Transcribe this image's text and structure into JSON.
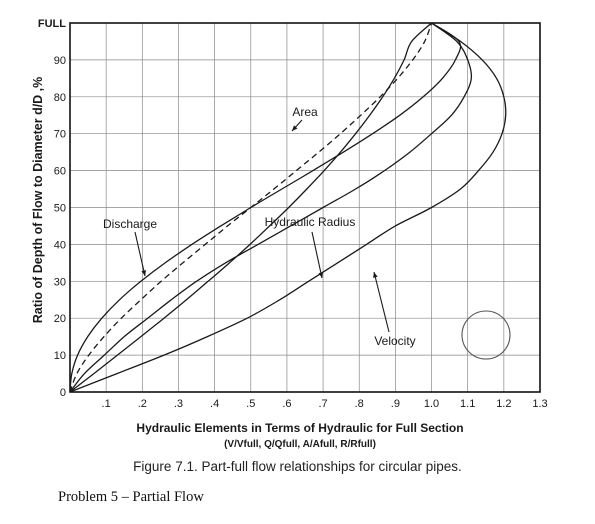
{
  "chart_data": {
    "type": "line",
    "ylabel": "Ratio of Depth of Flow to Diameter d/D ,%",
    "xlabel": "Hydraulic Elements in Terms of Hydraulic for Full Section",
    "xlabel_sub": "(V/Vfull, Q/Qfull, A/Afull, R/Rfull)",
    "xlim": [
      0,
      1.3
    ],
    "ylim": [
      0,
      100
    ],
    "x_ticks": [
      {
        "v": 0.1,
        "label": ".1"
      },
      {
        "v": 0.2,
        "label": ".2"
      },
      {
        "v": 0.3,
        "label": ".3"
      },
      {
        "v": 0.4,
        "label": ".4"
      },
      {
        "v": 0.5,
        "label": ".5"
      },
      {
        "v": 0.6,
        "label": ".6"
      },
      {
        "v": 0.7,
        "label": ".7"
      },
      {
        "v": 0.8,
        "label": ".8"
      },
      {
        "v": 0.9,
        "label": ".9"
      },
      {
        "v": 1.0,
        "label": "1.0"
      },
      {
        "v": 1.1,
        "label": "1.1"
      },
      {
        "v": 1.2,
        "label": "1.2"
      },
      {
        "v": 1.3,
        "label": "1.3"
      }
    ],
    "y_ticks": [
      {
        "v": 0,
        "label": "0"
      },
      {
        "v": 10,
        "label": "10"
      },
      {
        "v": 20,
        "label": "20"
      },
      {
        "v": 30,
        "label": "30"
      },
      {
        "v": 40,
        "label": "40"
      },
      {
        "v": 50,
        "label": "50"
      },
      {
        "v": 60,
        "label": "60"
      },
      {
        "v": 70,
        "label": "70"
      },
      {
        "v": 80,
        "label": "80"
      },
      {
        "v": 90,
        "label": "90"
      },
      {
        "v": 100,
        "label": "FULL"
      }
    ],
    "grid": true,
    "series": [
      {
        "name": "Area",
        "style": "dashed",
        "points": [
          [
            0,
            0
          ],
          [
            0.019,
            5
          ],
          [
            0.052,
            10
          ],
          [
            0.094,
            15
          ],
          [
            0.142,
            20
          ],
          [
            0.196,
            25
          ],
          [
            0.252,
            30
          ],
          [
            0.312,
            35
          ],
          [
            0.374,
            40
          ],
          [
            0.436,
            45
          ],
          [
            0.5,
            50
          ],
          [
            0.564,
            55
          ],
          [
            0.626,
            60
          ],
          [
            0.688,
            65
          ],
          [
            0.748,
            70
          ],
          [
            0.804,
            75
          ],
          [
            0.858,
            80
          ],
          [
            0.906,
            85
          ],
          [
            0.948,
            90
          ],
          [
            0.981,
            95
          ],
          [
            1.0,
            100
          ]
        ]
      },
      {
        "name": "Discharge",
        "style": "solid",
        "points": [
          [
            0,
            0
          ],
          [
            0.005,
            5
          ],
          [
            0.021,
            10
          ],
          [
            0.049,
            15
          ],
          [
            0.088,
            20
          ],
          [
            0.137,
            25
          ],
          [
            0.196,
            30
          ],
          [
            0.263,
            35
          ],
          [
            0.337,
            40
          ],
          [
            0.417,
            45
          ],
          [
            0.5,
            50
          ],
          [
            0.586,
            55
          ],
          [
            0.672,
            60
          ],
          [
            0.756,
            65
          ],
          [
            0.837,
            70
          ],
          [
            0.912,
            75
          ],
          [
            0.977,
            80
          ],
          [
            1.03,
            85
          ],
          [
            1.066,
            90
          ],
          [
            1.076,
            95
          ],
          [
            1.0,
            100
          ]
        ]
      },
      {
        "name": "Hydraulic Radius",
        "style": "solid",
        "points": [
          [
            0,
            0
          ],
          [
            0.066,
            5
          ],
          [
            0.131,
            10
          ],
          [
            0.196,
            15
          ],
          [
            0.26,
            20
          ],
          [
            0.322,
            25
          ],
          [
            0.382,
            30
          ],
          [
            0.441,
            35
          ],
          [
            0.498,
            40
          ],
          [
            0.552,
            45
          ],
          [
            0.605,
            50
          ],
          [
            0.655,
            55
          ],
          [
            0.703,
            60
          ],
          [
            0.748,
            65
          ],
          [
            0.79,
            70
          ],
          [
            0.829,
            75
          ],
          [
            0.865,
            80
          ],
          [
            0.897,
            85
          ],
          [
            0.924,
            90
          ],
          [
            0.945,
            95
          ],
          [
            1.0,
            100
          ]
        ]
      },
      {
        "name": "Velocity",
        "style": "solid",
        "points": [
          [
            0,
            0
          ],
          [
            0.04,
            5
          ],
          [
            0.095,
            10
          ],
          [
            0.15,
            15
          ],
          [
            0.215,
            20
          ],
          [
            0.28,
            25
          ],
          [
            0.35,
            30
          ],
          [
            0.43,
            35
          ],
          [
            0.52,
            40
          ],
          [
            0.61,
            45
          ],
          [
            0.7,
            50
          ],
          [
            0.79,
            55
          ],
          [
            0.87,
            60
          ],
          [
            0.94,
            65
          ],
          [
            1.0,
            70
          ],
          [
            1.055,
            75
          ],
          [
            1.09,
            80
          ],
          [
            1.11,
            85
          ],
          [
            1.1,
            90
          ],
          [
            1.07,
            95
          ],
          [
            1.0,
            100
          ]
        ]
      },
      {
        "name": "Velocity",
        "style": "solid",
        "points": [
          [
            0,
            0
          ],
          [
            0.13,
            5
          ],
          [
            0.26,
            10
          ],
          [
            0.38,
            15
          ],
          [
            0.49,
            20
          ],
          [
            0.58,
            25
          ],
          [
            0.66,
            30
          ],
          [
            0.74,
            35
          ],
          [
            0.82,
            40
          ],
          [
            0.9,
            45
          ],
          [
            1.0,
            50
          ],
          [
            1.08,
            55
          ],
          [
            1.13,
            60
          ],
          [
            1.17,
            65
          ],
          [
            1.195,
            70
          ],
          [
            1.205,
            75
          ],
          [
            1.2,
            80
          ],
          [
            1.18,
            85
          ],
          [
            1.14,
            90
          ],
          [
            1.08,
            95
          ],
          [
            1.0,
            100
          ]
        ]
      }
    ],
    "annotations": [
      {
        "text": "Area",
        "series": "Area"
      },
      {
        "text": "Discharge",
        "series": "Discharge"
      },
      {
        "text": "Hydraulic Radius",
        "series": "Hydraulic Radius"
      },
      {
        "text": "Velocity",
        "series": "Velocity"
      }
    ]
  },
  "caption": "Figure 7.1.  Part-full flow relationships for circular pipes.",
  "problem_text": "Problem 5 – Partial Flow"
}
